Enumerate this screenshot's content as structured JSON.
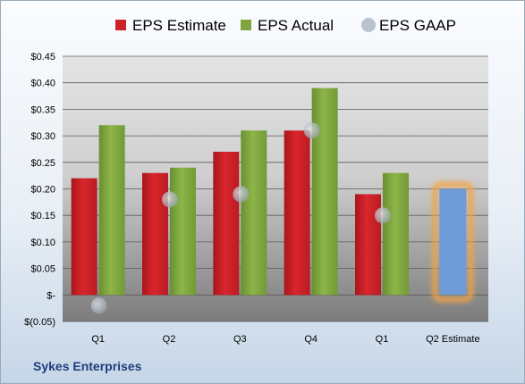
{
  "chart_data": {
    "type": "bar",
    "title": "",
    "xlabel": "",
    "ylabel": "",
    "categories": [
      "Q1",
      "Q2",
      "Q3",
      "Q4",
      "Q1",
      "Q2 Estimate"
    ],
    "ylim": [
      -0.05,
      0.45
    ],
    "yticks": [
      -0.05,
      0,
      0.05,
      0.1,
      0.15,
      0.2,
      0.25,
      0.3,
      0.35,
      0.4,
      0.45
    ],
    "ytick_labels": [
      "$(0.05)",
      "$-",
      "$0.05",
      "$0.10",
      "$0.15",
      "$0.20",
      "$0.25",
      "$0.30",
      "$0.35",
      "$0.40",
      "$0.45"
    ],
    "grid": true,
    "legend_position": "top",
    "series": [
      {
        "name": "EPS Estimate",
        "kind": "bar",
        "color": "#cc2127",
        "values": [
          0.22,
          0.23,
          0.27,
          0.31,
          0.19,
          null
        ]
      },
      {
        "name": "EPS Actual",
        "kind": "bar",
        "color": "#7fa63e",
        "values": [
          0.32,
          0.24,
          0.31,
          0.39,
          0.23,
          null
        ]
      },
      {
        "name": "EPS GAAP",
        "kind": "scatter",
        "color": "#b9c3cd",
        "values": [
          -0.02,
          0.18,
          0.19,
          0.31,
          0.15,
          null
        ]
      }
    ],
    "highlight": {
      "category": "Q2 Estimate",
      "value": 0.2,
      "color": "#6e9cd6",
      "glow_color": "#f5a442"
    }
  },
  "footer": {
    "company": "Sykes Enterprises"
  }
}
